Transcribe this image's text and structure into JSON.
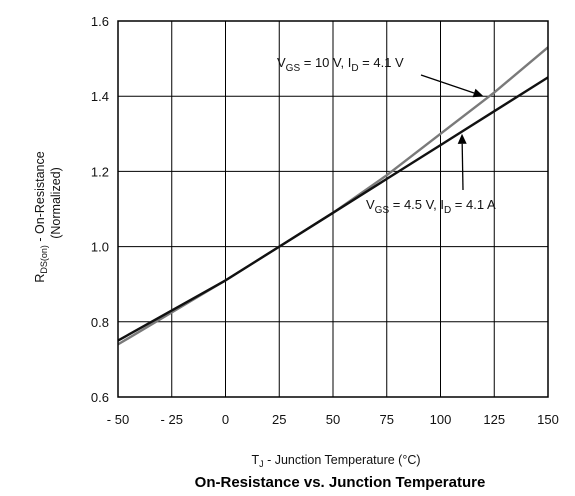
{
  "chart_data": {
    "type": "line",
    "title": "On-Resistance vs. Junction Temperature",
    "xlabel": {
      "main": "T",
      "sub": "J",
      "rest": " - Junction Temperature (°C)"
    },
    "ylabel": {
      "main": "R",
      "sub": "DS(on)",
      "rest": " - On-Resistance",
      "line2": "(Normalized)"
    },
    "xlim": [
      -50,
      150
    ],
    "ylim": [
      0.6,
      1.6
    ],
    "x_ticks": [
      -50,
      -25,
      0,
      25,
      50,
      75,
      100,
      125,
      150
    ],
    "x_tick_labels": [
      "- 50",
      "- 25",
      "0",
      "25",
      "50",
      "75",
      "100",
      "125",
      "150"
    ],
    "y_ticks": [
      0.6,
      0.8,
      1.0,
      1.2,
      1.4,
      1.6
    ],
    "y_tick_labels": [
      "0.6",
      "0.8",
      "1.0",
      "1.2",
      "1.4",
      "1.6"
    ],
    "grid": true,
    "series": [
      {
        "color": "#7a7a7a",
        "x": [
          -50,
          0,
          25,
          50,
          75,
          100,
          125,
          150
        ],
        "y": [
          0.74,
          0.91,
          1.0,
          1.09,
          1.19,
          1.3,
          1.41,
          1.53
        ]
      },
      {
        "color": "#111111",
        "x": [
          -50,
          0,
          25,
          50,
          75,
          100,
          125,
          150
        ],
        "y": [
          0.75,
          0.91,
          1.0,
          1.09,
          1.18,
          1.27,
          1.36,
          1.45
        ]
      }
    ],
    "annotations": [
      {
        "parts": [
          {
            "t": "V",
            "style": "normal"
          },
          {
            "t": "GS",
            "style": "sub"
          },
          {
            "t": " = 10 V, I",
            "style": "normal"
          },
          {
            "t": "D",
            "style": "sub"
          },
          {
            "t": " = 4.1 V",
            "style": "normal"
          }
        ],
        "target_series": 0,
        "target": [
          120,
          1.4
        ]
      },
      {
        "parts": [
          {
            "t": "V",
            "style": "normal"
          },
          {
            "t": "GS",
            "style": "sub"
          },
          {
            "t": " = 4.5 V, I",
            "style": "normal"
          },
          {
            "t": "D",
            "style": "sub"
          },
          {
            "t": " = 4.1 A",
            "style": "normal"
          }
        ],
        "target_series": 1,
        "target": [
          110,
          1.3
        ]
      }
    ]
  }
}
